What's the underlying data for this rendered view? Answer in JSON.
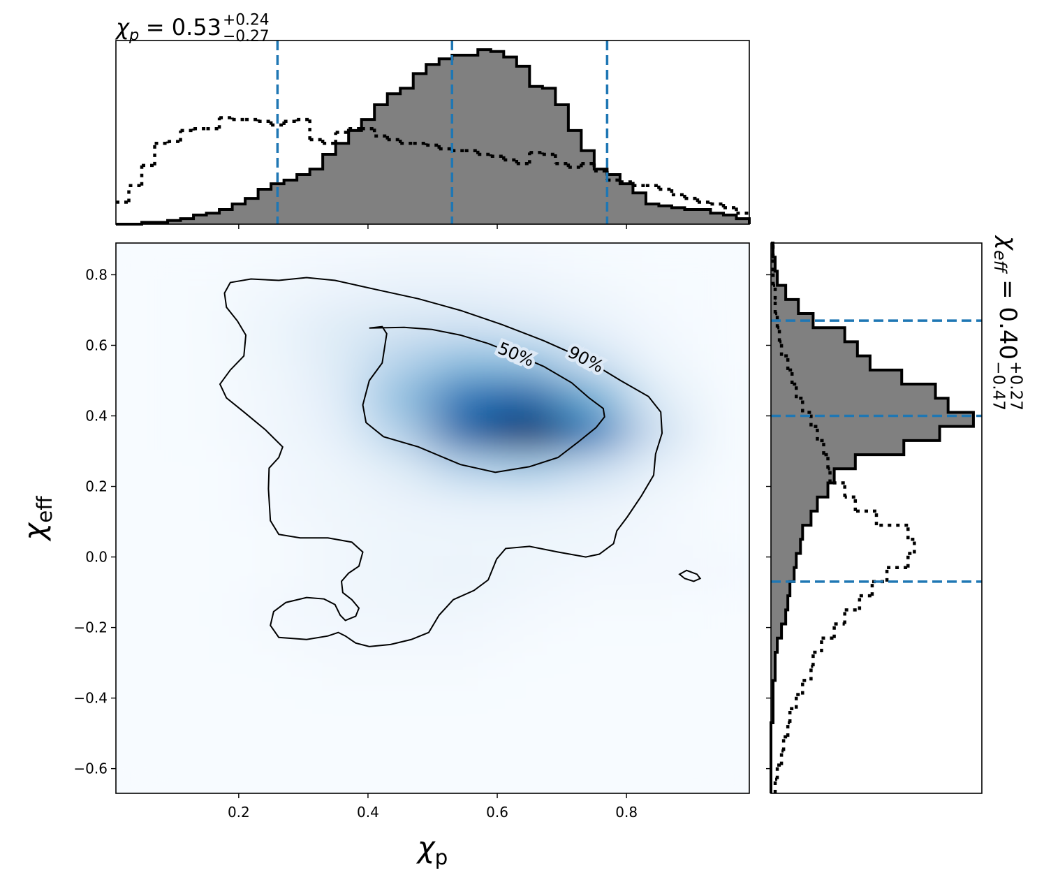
{
  "chart_data": [
    {
      "type": "histogram",
      "title": {
        "base": "χ",
        "sub": "p",
        "value": "= 0.53",
        "upper": "+0.24",
        "lower": "−0.27"
      },
      "bins": [
        0.01,
        0.03,
        0.05,
        0.07,
        0.09,
        0.11,
        0.13,
        0.15,
        0.17,
        0.19,
        0.21,
        0.23,
        0.25,
        0.27,
        0.29,
        0.31,
        0.33,
        0.35,
        0.37,
        0.39,
        0.41,
        0.43,
        0.45,
        0.47,
        0.49,
        0.51,
        0.53,
        0.55,
        0.57,
        0.59,
        0.61,
        0.63,
        0.65,
        0.67,
        0.69,
        0.71,
        0.73,
        0.75,
        0.77,
        0.79,
        0.81,
        0.83,
        0.85,
        0.87,
        0.89,
        0.91,
        0.93,
        0.95,
        0.97,
        0.99
      ],
      "series": [
        {
          "style": "filled",
          "color": "#808080",
          "values": [
            0,
            0,
            0.01,
            0.01,
            0.02,
            0.03,
            0.05,
            0.06,
            0.08,
            0.11,
            0.14,
            0.19,
            0.22,
            0.24,
            0.27,
            0.3,
            0.38,
            0.44,
            0.51,
            0.57,
            0.65,
            0.71,
            0.74,
            0.82,
            0.87,
            0.9,
            0.92,
            0.92,
            0.95,
            0.94,
            0.91,
            0.86,
            0.75,
            0.74,
            0.65,
            0.51,
            0.4,
            0.3,
            0.27,
            0.22,
            0.17,
            0.11,
            0.1,
            0.09,
            0.08,
            0.08,
            0.06,
            0.05,
            0.03
          ]
        },
        {
          "style": "dotted",
          "color": "#000000",
          "values": [
            0.12,
            0.21,
            0.32,
            0.44,
            0.45,
            0.51,
            0.52,
            0.52,
            0.58,
            0.57,
            0.57,
            0.56,
            0.54,
            0.56,
            0.57,
            0.46,
            0.44,
            0.5,
            0.52,
            0.52,
            0.48,
            0.46,
            0.44,
            0.44,
            0.43,
            0.41,
            0.4,
            0.4,
            0.38,
            0.37,
            0.35,
            0.33,
            0.39,
            0.38,
            0.33,
            0.31,
            0.33,
            0.29,
            0.24,
            0.23,
            0.21,
            0.21,
            0.19,
            0.16,
            0.14,
            0.12,
            0.11,
            0.09,
            0.06
          ]
        }
      ],
      "quantiles": [
        0.26,
        0.53,
        0.77
      ],
      "quantile_color": "#1f77b4",
      "xlim": [
        0.01,
        0.99
      ],
      "ylim": [
        0,
        1
      ],
      "xticks": [
        0.2,
        0.4,
        0.6,
        0.8
      ]
    },
    {
      "type": "heatmap",
      "xlabel": {
        "base": "χ",
        "sub": "p"
      },
      "ylabel": {
        "base": "χ",
        "sub": "eff"
      },
      "xlim": [
        0.01,
        0.99
      ],
      "ylim": [
        -0.67,
        0.89
      ],
      "xticks": [
        0.2,
        0.4,
        0.6,
        0.8
      ],
      "yticks": [
        {
          "value": -0.6,
          "label": "−0.6"
        },
        {
          "value": -0.4,
          "label": "−0.4"
        },
        {
          "value": -0.2,
          "label": "−0.2"
        },
        {
          "value": 0,
          "label": "0.0"
        },
        0.2,
        0.4,
        0.6,
        0.8
      ],
      "colormap": [
        "#f7fbff",
        "#c6dbef",
        "#6baed6",
        "#2171b5",
        "#08306b"
      ],
      "density_x": [
        0.05,
        0.15,
        0.25,
        0.35,
        0.45,
        0.55,
        0.65,
        0.75,
        0.85,
        0.95
      ],
      "density_y": [
        0.85,
        0.75,
        0.65,
        0.55,
        0.45,
        0.35,
        0.25,
        0.15,
        0.05,
        -0.05,
        -0.15,
        -0.25,
        -0.35,
        -0.45,
        -0.55,
        -0.65
      ],
      "density": [
        [
          0,
          0,
          0.01,
          0.02,
          0.03,
          0.03,
          0.02,
          0.01,
          0,
          0
        ],
        [
          0,
          0.01,
          0.03,
          0.06,
          0.08,
          0.08,
          0.06,
          0.03,
          0.01,
          0
        ],
        [
          0,
          0.01,
          0.05,
          0.12,
          0.18,
          0.2,
          0.15,
          0.08,
          0.02,
          0
        ],
        [
          0,
          0.01,
          0.04,
          0.12,
          0.3,
          0.42,
          0.4,
          0.22,
          0.05,
          0
        ],
        [
          0,
          0.01,
          0.03,
          0.1,
          0.4,
          0.75,
          0.8,
          0.5,
          0.12,
          0.01
        ],
        [
          0,
          0.01,
          0.03,
          0.08,
          0.3,
          0.8,
          1.0,
          0.7,
          0.2,
          0.01
        ],
        [
          0,
          0,
          0.02,
          0.05,
          0.12,
          0.3,
          0.35,
          0.25,
          0.08,
          0.01
        ],
        [
          0,
          0,
          0.02,
          0.04,
          0.06,
          0.08,
          0.08,
          0.06,
          0.03,
          0
        ],
        [
          0,
          0,
          0.01,
          0.03,
          0.05,
          0.05,
          0.05,
          0.04,
          0.02,
          0.01
        ],
        [
          0,
          0,
          0.01,
          0.03,
          0.05,
          0.06,
          0.04,
          0.02,
          0.02,
          0.02
        ],
        [
          0,
          0,
          0.02,
          0.03,
          0.04,
          0.04,
          0.02,
          0.01,
          0.01,
          0
        ],
        [
          0,
          0,
          0.01,
          0.02,
          0.02,
          0.02,
          0.01,
          0,
          0,
          0
        ],
        [
          0,
          0,
          0,
          0.01,
          0.01,
          0.01,
          0,
          0,
          0,
          0
        ],
        [
          0,
          0,
          0,
          0,
          0,
          0,
          0,
          0,
          0,
          0
        ],
        [
          0,
          0,
          0,
          0,
          0,
          0,
          0,
          0,
          0,
          0
        ],
        [
          0,
          0,
          0,
          0,
          0,
          0,
          0,
          0,
          0,
          0
        ]
      ],
      "contours": [
        {
          "label": "50%",
          "x": [
            0.402,
            0.422,
            0.429,
            0.422,
            0.402,
            0.392,
            0.397,
            0.424,
            0.478,
            0.543,
            0.597,
            0.65,
            0.694,
            0.726,
            0.753,
            0.766,
            0.764,
            0.742,
            0.715,
            0.672,
            0.629,
            0.586,
            0.543,
            0.499,
            0.456
          ],
          "y": [
            0.649,
            0.653,
            0.633,
            0.55,
            0.5,
            0.431,
            0.381,
            0.341,
            0.312,
            0.262,
            0.24,
            0.256,
            0.282,
            0.327,
            0.367,
            0.397,
            0.421,
            0.451,
            0.494,
            0.54,
            0.574,
            0.605,
            0.629,
            0.645,
            0.651
          ]
        },
        {
          "label": "90%",
          "x": [
            0.187,
            0.219,
            0.262,
            0.305,
            0.349,
            0.413,
            0.478,
            0.543,
            0.607,
            0.672,
            0.737,
            0.791,
            0.834,
            0.853,
            0.855,
            0.845,
            0.842,
            0.823,
            0.801,
            0.785,
            0.78,
            0.758,
            0.737,
            0.694,
            0.65,
            0.613,
            0.599,
            0.586,
            0.564,
            0.532,
            0.51,
            0.494,
            0.467,
            0.435,
            0.402,
            0.381,
            0.365,
            0.354,
            0.338,
            0.305,
            0.262,
            0.249,
            0.254,
            0.273,
            0.305,
            0.332,
            0.349,
            0.357,
            0.365,
            0.381,
            0.386,
            0.375,
            0.361,
            0.359,
            0.37,
            0.386,
            0.392,
            0.375,
            0.338,
            0.295,
            0.262,
            0.249,
            0.246,
            0.247,
            0.262,
            0.268,
            0.241,
            0.208,
            0.181,
            0.171,
            0.187,
            0.208,
            0.211,
            0.198,
            0.181,
            0.178,
            null,
            0.882,
            0.893,
            0.909,
            0.914,
            0.904,
            0.89
          ],
          "y": [
            0.778,
            0.788,
            0.784,
            0.792,
            0.784,
            0.758,
            0.732,
            0.699,
            0.659,
            0.613,
            0.56,
            0.5,
            0.455,
            0.411,
            0.351,
            0.292,
            0.232,
            0.173,
            0.113,
            0.074,
            0.038,
            0.008,
            0.0,
            0.014,
            0.03,
            0.024,
            -0.006,
            -0.065,
            -0.095,
            -0.121,
            -0.165,
            -0.214,
            -0.234,
            -0.248,
            -0.254,
            -0.244,
            -0.224,
            -0.214,
            -0.224,
            -0.234,
            -0.228,
            -0.194,
            -0.155,
            -0.129,
            -0.115,
            -0.119,
            -0.135,
            -0.165,
            -0.18,
            -0.168,
            -0.145,
            -0.121,
            -0.101,
            -0.069,
            -0.046,
            -0.026,
            0.014,
            0.042,
            0.054,
            0.054,
            0.064,
            0.103,
            0.193,
            0.252,
            0.282,
            0.312,
            0.361,
            0.411,
            0.451,
            0.49,
            0.53,
            0.57,
            0.629,
            0.669,
            0.708,
            0.748,
            null,
            -0.049,
            -0.038,
            -0.049,
            -0.061,
            -0.069,
            -0.061
          ]
        }
      ]
    },
    {
      "type": "histogram",
      "orientation": "horizontal",
      "title": {
        "base": "χ",
        "sub": "eff",
        "value": "= 0.40",
        "upper": "+0.27",
        "lower": "−0.47"
      },
      "bins": [
        -0.67,
        -0.63,
        -0.59,
        -0.55,
        -0.51,
        -0.47,
        -0.43,
        -0.39,
        -0.35,
        -0.31,
        -0.27,
        -0.23,
        -0.19,
        -0.15,
        -0.11,
        -0.07,
        -0.03,
        0.01,
        0.05,
        0.09,
        0.13,
        0.17,
        0.21,
        0.25,
        0.29,
        0.33,
        0.37,
        0.41,
        0.45,
        0.49,
        0.53,
        0.57,
        0.61,
        0.65,
        0.69,
        0.73,
        0.77,
        0.81,
        0.85,
        0.89
      ],
      "series": [
        {
          "style": "filled",
          "color": "#808080",
          "values": [
            0,
            0,
            0,
            0,
            0,
            0.01,
            0.01,
            0.01,
            0.02,
            0.02,
            0.03,
            0.05,
            0.07,
            0.08,
            0.09,
            0.11,
            0.12,
            0.14,
            0.15,
            0.19,
            0.22,
            0.27,
            0.3,
            0.4,
            0.63,
            0.8,
            0.96,
            0.84,
            0.78,
            0.62,
            0.47,
            0.41,
            0.35,
            0.2,
            0.13,
            0.07,
            0.03,
            0.02,
            0.01
          ]
        },
        {
          "style": "dotted",
          "color": "#000000",
          "values": [
            0.02,
            0.03,
            0.05,
            0.06,
            0.08,
            0.09,
            0.12,
            0.15,
            0.19,
            0.2,
            0.24,
            0.3,
            0.35,
            0.42,
            0.48,
            0.55,
            0.65,
            0.68,
            0.65,
            0.5,
            0.4,
            0.35,
            0.28,
            0.27,
            0.25,
            0.22,
            0.19,
            0.15,
            0.12,
            0.1,
            0.08,
            0.05,
            0.04,
            0.03,
            0.02,
            0.02,
            0.01,
            0.01,
            0.01
          ]
        }
      ],
      "quantiles": [
        -0.07,
        0.4,
        0.67
      ],
      "quantile_color": "#1f77b4",
      "ylim": [
        -0.67,
        0.89
      ],
      "xlim": [
        0,
        1
      ],
      "yticks": [
        {
          "value": -0.6,
          "label": "−0.6"
        },
        {
          "value": -0.4,
          "label": "−0.4"
        },
        {
          "value": -0.2,
          "label": "−0.2"
        },
        {
          "value": 0,
          "label": "0.0"
        },
        0.2,
        0.4,
        0.6,
        0.8
      ]
    }
  ]
}
